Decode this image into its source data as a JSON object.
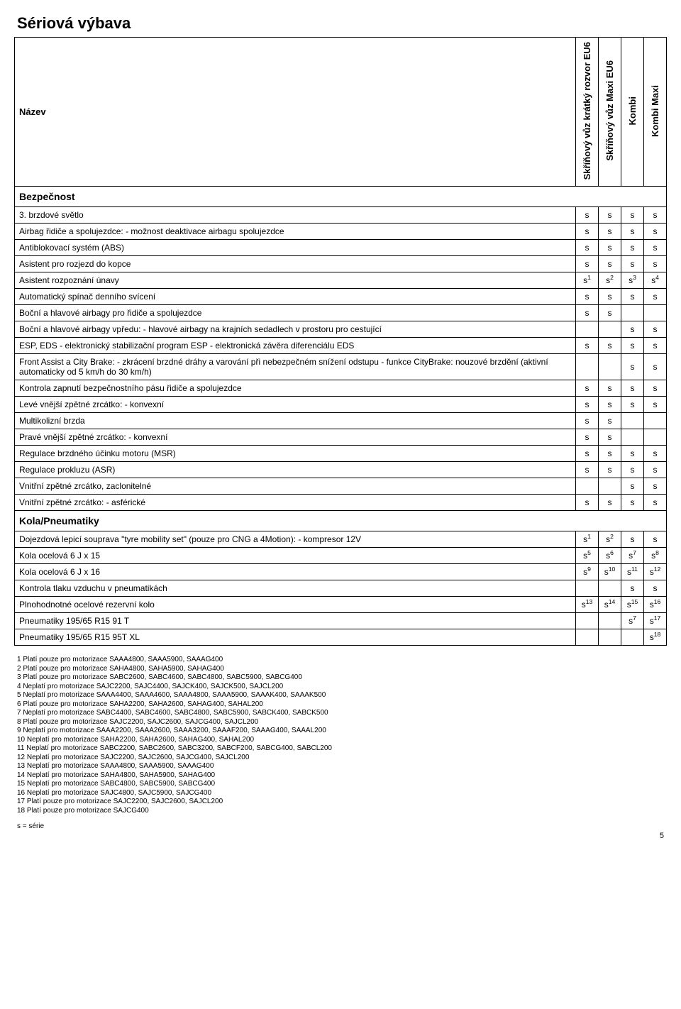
{
  "title": "Sériová výbava",
  "nameHeader": "Název",
  "columnHeaders": [
    "Skříňový vůz krátký rozvor EU6",
    "Skříňový vůz Maxi EU6",
    "Kombi",
    "Kombi Maxi"
  ],
  "sections": [
    {
      "name": "Bezpečnost",
      "rows": [
        {
          "label": "3. brzdové světlo",
          "vals": [
            "s",
            "s",
            "s",
            "s"
          ]
        },
        {
          "label": "Airbag řidiče a spolujezdce: - možnost deaktivace airbagu spolujezdce",
          "vals": [
            "s",
            "s",
            "s",
            "s"
          ]
        },
        {
          "label": "Antiblokovací systém (ABS)",
          "vals": [
            "s",
            "s",
            "s",
            "s"
          ]
        },
        {
          "label": "Asistent pro rozjezd do kopce",
          "vals": [
            "s",
            "s",
            "s",
            "s"
          ]
        },
        {
          "label": "Asistent rozpoznání únavy",
          "vals": [
            "s",
            "s",
            "s",
            "s"
          ],
          "sups": [
            "1",
            "2",
            "3",
            "4"
          ]
        },
        {
          "label": "Automatický spínač denního svícení",
          "vals": [
            "s",
            "s",
            "s",
            "s"
          ]
        },
        {
          "label": "Boční a hlavové airbagy pro řidiče a spolujezdce",
          "vals": [
            "s",
            "s",
            "",
            ""
          ]
        },
        {
          "label": "Boční a hlavové airbagy vpředu: - hlavové airbagy na krajních sedadlech v prostoru pro cestující",
          "vals": [
            "",
            "",
            "s",
            "s"
          ]
        },
        {
          "label": "ESP, EDS - elektronický stabilizační program ESP - elektronická závěra diferenciálu EDS",
          "vals": [
            "s",
            "s",
            "s",
            "s"
          ]
        },
        {
          "label": "Front Assist a City Brake: - zkrácení brzdné dráhy a varování při nebezpečném snížení odstupu - funkce CityBrake: nouzové brzdění (aktivní automaticky od 5 km/h do 30 km/h)",
          "vals": [
            "",
            "",
            "s",
            "s"
          ]
        },
        {
          "label": "Kontrola zapnutí bezpečnostního pásu řidiče a spolujezdce",
          "vals": [
            "s",
            "s",
            "s",
            "s"
          ]
        },
        {
          "label": "Levé vnější zpětné zrcátko: - konvexní",
          "vals": [
            "s",
            "s",
            "s",
            "s"
          ]
        },
        {
          "label": "Multikolizní brzda",
          "vals": [
            "s",
            "s",
            "",
            ""
          ]
        },
        {
          "label": "Pravé vnější zpětné zrcátko: - konvexní",
          "vals": [
            "s",
            "s",
            "",
            ""
          ]
        },
        {
          "label": "Regulace brzdného účinku motoru (MSR)",
          "vals": [
            "s",
            "s",
            "s",
            "s"
          ]
        },
        {
          "label": "Regulace prokluzu (ASR)",
          "vals": [
            "s",
            "s",
            "s",
            "s"
          ]
        },
        {
          "label": "Vnitřní zpětné zrcátko, zaclonitelné",
          "vals": [
            "",
            "",
            "s",
            "s"
          ]
        },
        {
          "label": "Vnitřní zpětné zrcátko: - asférické",
          "vals": [
            "s",
            "s",
            "s",
            "s"
          ]
        }
      ]
    },
    {
      "name": "Kola/Pneumatiky",
      "rows": [
        {
          "label": "Dojezdová lepicí souprava \"tyre mobility set\" (pouze pro CNG a 4Motion): - kompresor 12V",
          "vals": [
            "s",
            "s",
            "s",
            "s"
          ],
          "sups": [
            "1",
            "2",
            "",
            ""
          ]
        },
        {
          "label": "Kola ocelová 6 J x 15",
          "vals": [
            "s",
            "s",
            "s",
            "s"
          ],
          "sups": [
            "5",
            "6",
            "7",
            "8"
          ]
        },
        {
          "label": "Kola ocelová 6 J x 16",
          "vals": [
            "s",
            "s",
            "s",
            "s"
          ],
          "sups": [
            "9",
            "10",
            "11",
            "12"
          ]
        },
        {
          "label": "Kontrola tlaku vzduchu v pneumatikách",
          "vals": [
            "",
            "",
            "s",
            "s"
          ]
        },
        {
          "label": "Plnohodnotné ocelové rezervní kolo",
          "vals": [
            "s",
            "s",
            "s",
            "s"
          ],
          "sups": [
            "13",
            "14",
            "15",
            "16"
          ]
        },
        {
          "label": "Pneumatiky 195/65 R15 91 T",
          "vals": [
            "",
            "",
            "s",
            "s"
          ],
          "sups": [
            "",
            "",
            "7",
            "17"
          ]
        },
        {
          "label": "Pneumatiky 195/65 R15 95T XL",
          "vals": [
            "",
            "",
            "",
            "s"
          ],
          "sups": [
            "",
            "",
            "",
            "18"
          ]
        }
      ]
    }
  ],
  "footnotes": [
    "1 Platí pouze pro motorizace SAAA4800, SAAA5900, SAAAG400",
    "2 Platí pouze pro motorizace SAHA4800, SAHA5900, SAHAG400",
    "3 Platí pouze pro motorizace SABC2600, SABC4600, SABC4800, SABC5900, SABCG400",
    "4 Neplatí pro motorizace SAJC2200, SAJC4400, SAJCK400, SAJCK500, SAJCL200",
    "5 Neplatí pro motorizace SAAA4400, SAAA4600, SAAA4800, SAAA5900, SAAAK400, SAAAK500",
    "6 Platí pouze pro motorizace SAHA2200, SAHA2600, SAHAG400, SAHAL200",
    "7 Neplatí pro motorizace SABC4400, SABC4600, SABC4800, SABC5900, SABCK400, SABCK500",
    "8 Platí pouze pro motorizace SAJC2200, SAJC2600, SAJCG400, SAJCL200",
    "9 Neplatí pro motorizace SAAA2200, SAAA2600, SAAA3200, SAAAF200, SAAAG400, SAAAL200",
    "10 Neplatí pro motorizace SAHA2200, SAHA2600, SAHAG400, SAHAL200",
    "11 Neplatí pro motorizace SABC2200, SABC2600, SABC3200, SABCF200, SABCG400, SABCL200",
    "12 Neplatí pro motorizace SAJC2200, SAJC2600, SAJCG400, SAJCL200",
    "13 Neplatí pro motorizace SAAA4800, SAAA5900, SAAAG400",
    "14 Neplatí pro motorizace SAHA4800, SAHA5900, SAHAG400",
    "15 Neplatí pro motorizace SABC4800, SABC5900, SABCG400",
    "16 Neplatí pro motorizace SAJC4800, SAJC5900, SAJCG400",
    "17 Platí pouze pro motorizace SAJC2200, SAJC2600, SAJCL200",
    "18 Platí pouze pro motorizace SAJCG400"
  ],
  "legend": "s = série",
  "pageNumber": "5"
}
